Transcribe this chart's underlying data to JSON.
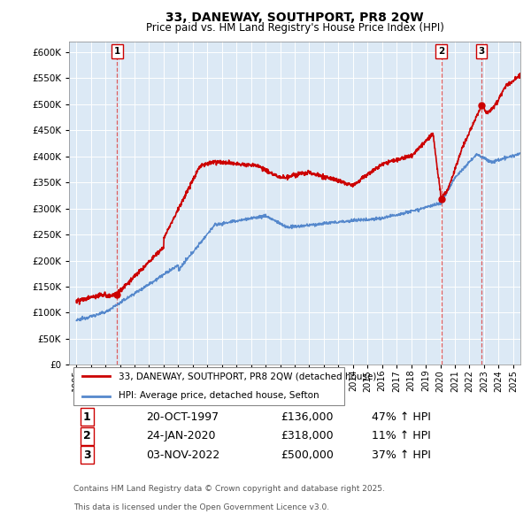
{
  "title": "33, DANEWAY, SOUTHPORT, PR8 2QW",
  "subtitle": "Price paid vs. HM Land Registry's House Price Index (HPI)",
  "legend_label_red": "33, DANEWAY, SOUTHPORT, PR8 2QW (detached house)",
  "legend_label_blue": "HPI: Average price, detached house, Sefton",
  "footer_line1": "Contains HM Land Registry data © Crown copyright and database right 2025.",
  "footer_line2": "This data is licensed under the Open Government Licence v3.0.",
  "sales": [
    {
      "num": 1,
      "date": "20-OCT-1997",
      "price": 136000,
      "hpi_pct": "47% ↑ HPI",
      "x": 1997.8
    },
    {
      "num": 2,
      "date": "24-JAN-2020",
      "price": 318000,
      "hpi_pct": "11% ↑ HPI",
      "x": 2020.07
    },
    {
      "num": 3,
      "date": "03-NOV-2022",
      "price": 500000,
      "hpi_pct": "37% ↑ HPI",
      "x": 2022.84
    }
  ],
  "vline_color": "#dd4444",
  "red_line_color": "#cc0000",
  "blue_line_color": "#5588cc",
  "chart_bg": "#dce9f5",
  "ylim": [
    0,
    620000
  ],
  "yticks": [
    0,
    50000,
    100000,
    150000,
    200000,
    250000,
    300000,
    350000,
    400000,
    450000,
    500000,
    550000,
    600000
  ],
  "xlim": [
    1994.5,
    2025.5
  ],
  "background_color": "#ffffff",
  "grid_color": "#ffffff"
}
